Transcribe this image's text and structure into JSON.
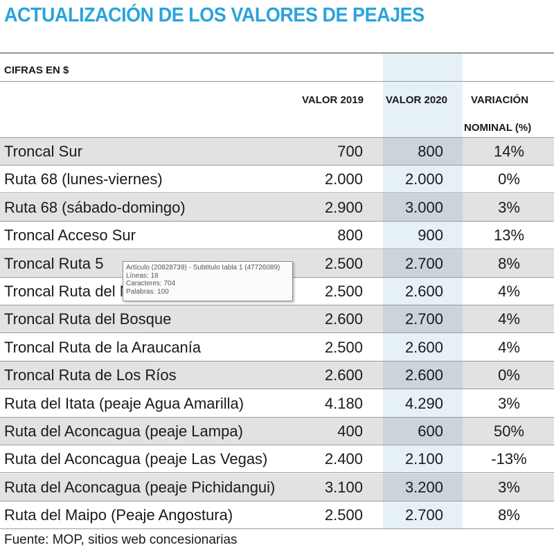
{
  "title": "ACTUALIZACIÓN DE LOS VALORES DE PEAJES",
  "units_label": "CIFRAS EN $",
  "columns": {
    "valor_2019": "VALOR 2019",
    "valor_2020": "VALOR 2020",
    "variacion_line1": "VARIACIÓN",
    "variacion_line2": "NOMINAL (%)"
  },
  "rows": [
    {
      "name": "Troncal Sur",
      "v2019": "700",
      "v2020": "800",
      "variacion": "14%"
    },
    {
      "name": "Ruta 68 (lunes-viernes)",
      "v2019": "2.000",
      "v2020": "2.000",
      "variacion": "0%"
    },
    {
      "name": "Ruta 68 (sábado-domingo)",
      "v2019": "2.900",
      "v2020": "3.000",
      "variacion": "3%"
    },
    {
      "name": "Troncal Acceso Sur",
      "v2019": "800",
      "v2020": "900",
      "variacion": "13%"
    },
    {
      "name": "Troncal Ruta 5",
      "v2019": "2.500",
      "v2020": "2.700",
      "variacion": "8%"
    },
    {
      "name": "Troncal Ruta del Maule",
      "v2019": "2.500",
      "v2020": "2.600",
      "variacion": "4%"
    },
    {
      "name": "Troncal Ruta del Bosque",
      "v2019": "2.600",
      "v2020": "2.700",
      "variacion": "4%"
    },
    {
      "name": "Troncal Ruta de la Araucanía",
      "v2019": "2.500",
      "v2020": "2.600",
      "variacion": "4%"
    },
    {
      "name": "Troncal Ruta de Los Ríos",
      "v2019": "2.600",
      "v2020": "2.600",
      "variacion": "0%"
    },
    {
      "name": "Ruta del Itata (peaje Agua Amarilla)",
      "v2019": "4.180",
      "v2020": "4.290",
      "variacion": "3%"
    },
    {
      "name": "Ruta del Aconcagua (peaje Lampa)",
      "v2019": "400",
      "v2020": "600",
      "variacion": "50%"
    },
    {
      "name": "Ruta del Aconcagua (peaje Las Vegas)",
      "v2019": "2.400",
      "v2020": "2.100",
      "variacion": "-13%"
    },
    {
      "name": "Ruta del Aconcagua (peaje Pichidangui)",
      "v2019": "3.100",
      "v2020": "3.200",
      "variacion": "3%"
    },
    {
      "name": "Ruta del Maipo (Peaje Angostura)",
      "v2019": "2.500",
      "v2020": "2.700",
      "variacion": "8%"
    }
  ],
  "source": "Fuente: MOP, sitios web concesionarias",
  "tooltip": {
    "line1": "Artículo (20828739) - Subtitulo tabla 1 (47726089)",
    "line2": "Líneas: 18",
    "line3": "Caracteres: 704",
    "line4": "Palabras: 100"
  },
  "colors": {
    "title": "#29a4dc",
    "highlight_column": "#e6f0f7",
    "row_shade": "#e2e2e2"
  }
}
